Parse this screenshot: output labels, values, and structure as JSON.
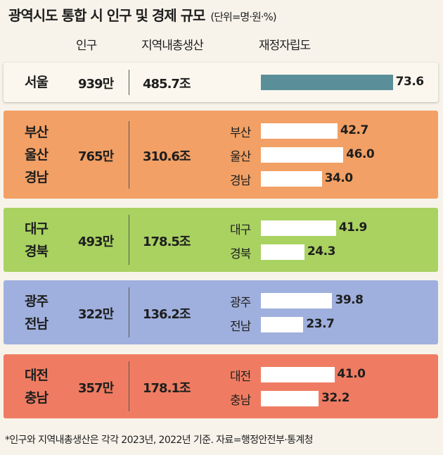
{
  "title": "광역시도 통합 시 인구 및 경제 규모",
  "unit_note": "(단위=명·원·%)",
  "headers": {
    "population": "인구",
    "grdp": "지역내총생산",
    "fiscal": "재정자립도"
  },
  "footnote": "*인구와 지역내총생산은 각각 2023년, 2022년 기준. 자료=행정안전부·통계청",
  "colors": {
    "page_background": "#f7f3ea",
    "bar_seoul": "#5a8e98",
    "bar_default": "#ffffff"
  },
  "chart_data": {
    "type": "bar",
    "groups": [
      {
        "names": [
          "서울"
        ],
        "population": "939만",
        "grdp": "485.7조",
        "color": "#fbf7ee",
        "bars": [
          {
            "label": "",
            "value": 73.6,
            "color": "#5a8e98"
          }
        ]
      },
      {
        "names": [
          "부산",
          "울산",
          "경남"
        ],
        "population": "765만",
        "grdp": "310.6조",
        "color": "#f2a065",
        "bars": [
          {
            "label": "부산",
            "value": 42.7,
            "color": "#ffffff"
          },
          {
            "label": "울산",
            "value": 46.0,
            "color": "#ffffff"
          },
          {
            "label": "경남",
            "value": 34.0,
            "color": "#ffffff"
          }
        ]
      },
      {
        "names": [
          "대구",
          "경북"
        ],
        "population": "493만",
        "grdp": "178.5조",
        "color": "#a9d261",
        "bars": [
          {
            "label": "대구",
            "value": 41.9,
            "color": "#ffffff"
          },
          {
            "label": "경북",
            "value": 24.3,
            "color": "#ffffff"
          }
        ]
      },
      {
        "names": [
          "광주",
          "전남"
        ],
        "population": "322만",
        "grdp": "136.2조",
        "color": "#9fb0de",
        "bars": [
          {
            "label": "광주",
            "value": 39.8,
            "color": "#ffffff"
          },
          {
            "label": "전남",
            "value": 23.7,
            "color": "#ffffff"
          }
        ]
      },
      {
        "names": [
          "대전",
          "충남"
        ],
        "population": "357만",
        "grdp": "178.1조",
        "color": "#ef7c62",
        "bars": [
          {
            "label": "대전",
            "value": 41.0,
            "color": "#ffffff"
          },
          {
            "label": "충남",
            "value": 32.2,
            "color": "#ffffff"
          }
        ]
      }
    ]
  }
}
